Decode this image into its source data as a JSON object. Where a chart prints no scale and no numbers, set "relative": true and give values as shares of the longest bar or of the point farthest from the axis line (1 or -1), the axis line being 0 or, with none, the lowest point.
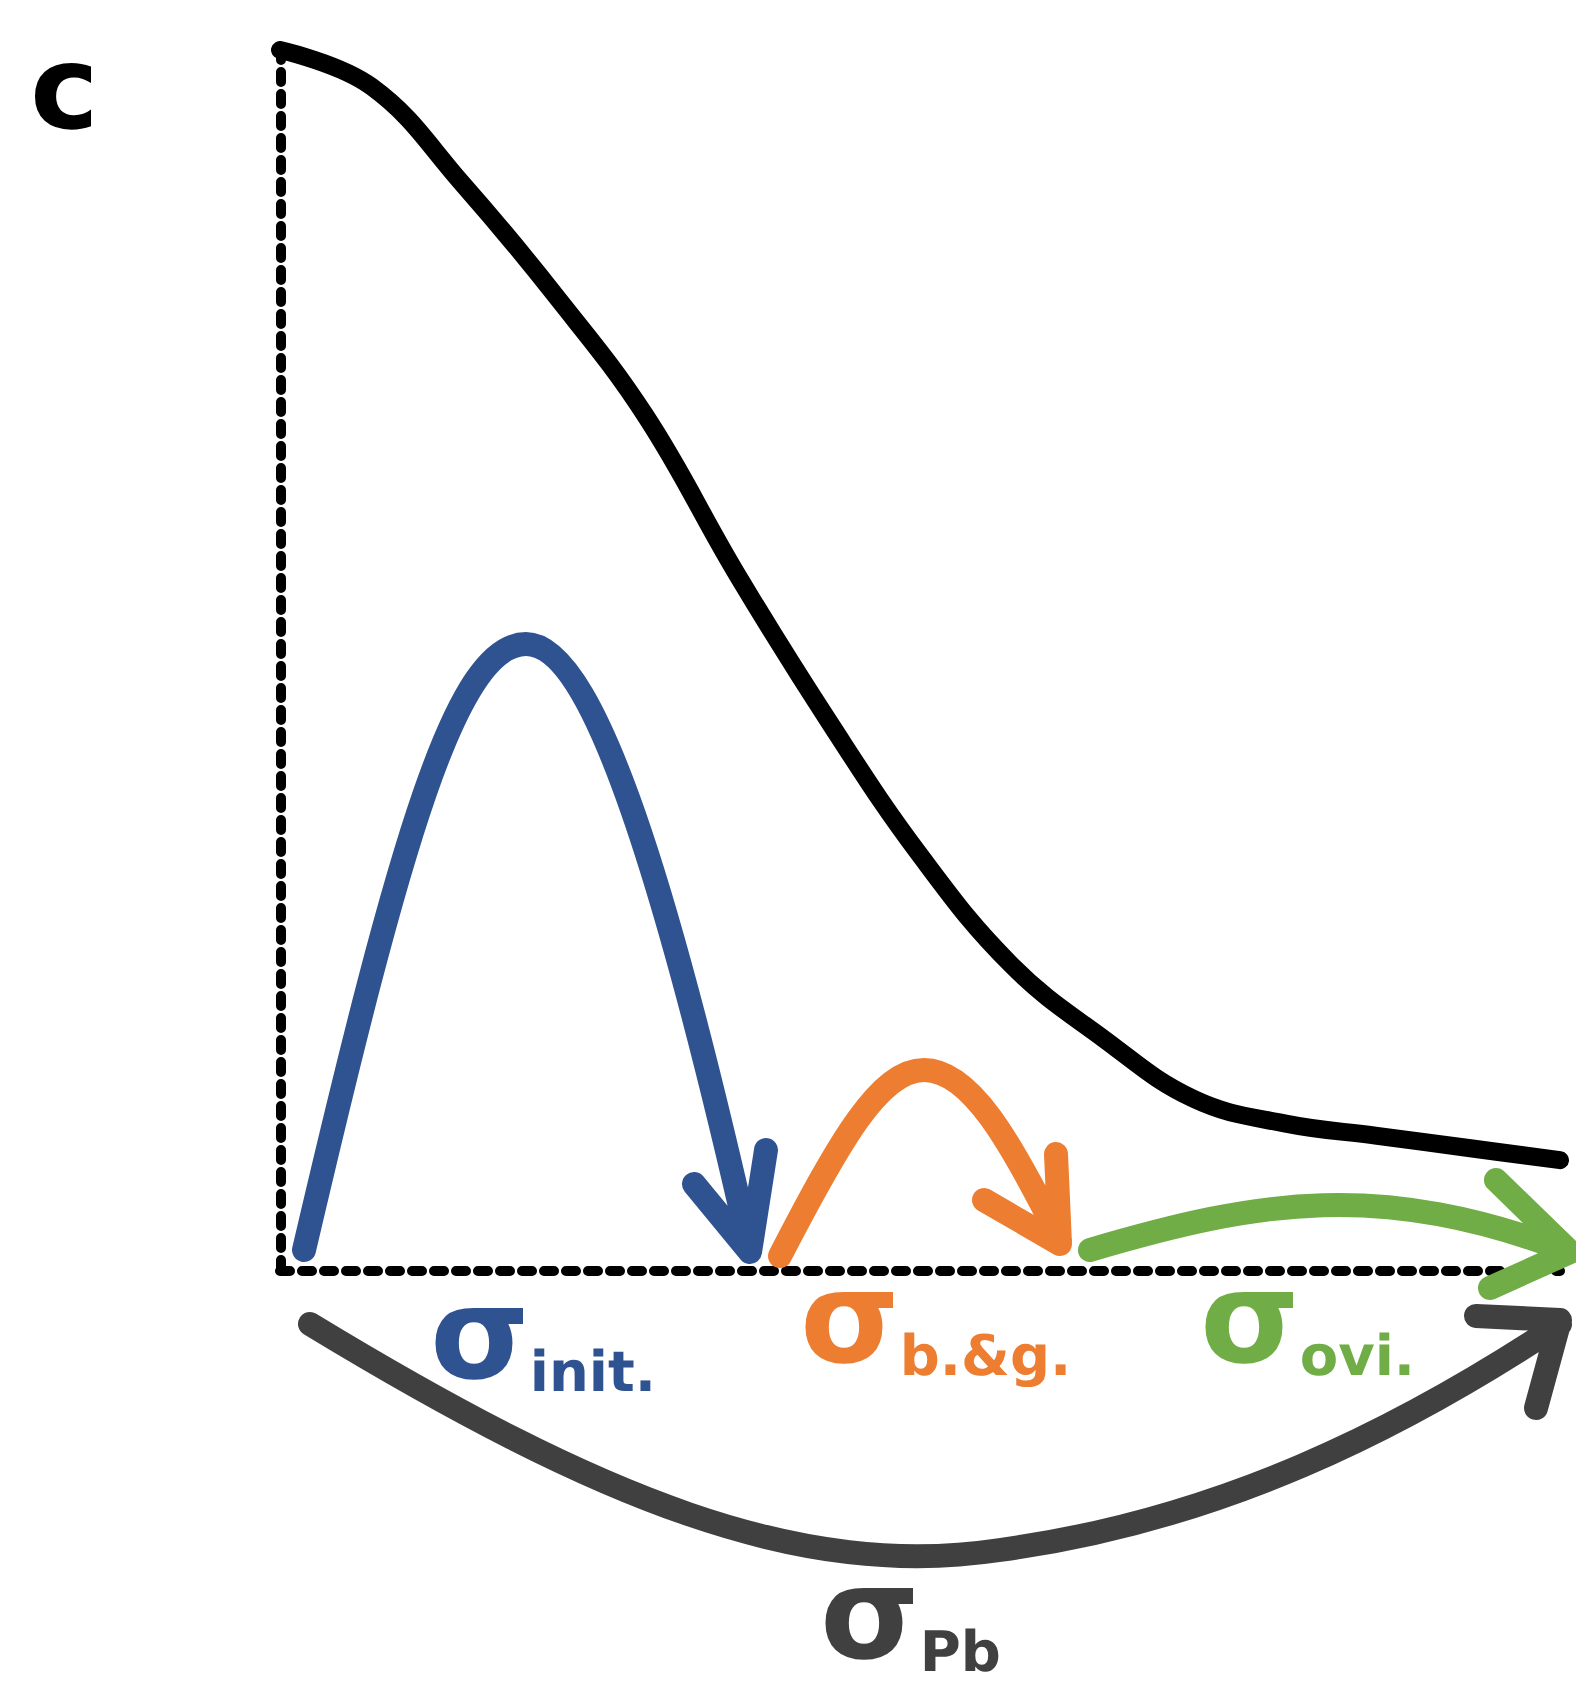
{
  "chart_data": {
    "type": "line",
    "title": "c",
    "relative": true,
    "categories": [
      null,
      null,
      null,
      null,
      null,
      null,
      null,
      null,
      null,
      null,
      null,
      null,
      null,
      null,
      null
    ],
    "series": [
      {
        "color": "#000000",
        "values": [
          1.0,
          0.97,
          0.89,
          0.8,
          0.7,
          0.57,
          0.45,
          0.34,
          0.25,
          0.19,
          0.14,
          0.12,
          0.11,
          0.1,
          0.09
        ]
      }
    ],
    "annotations": [
      "σ$_{init.}$",
      "σ$_{b.&g.}$",
      "σ$_{ovi.}$",
      "σ$_{Pb}$"
    ],
    "grid": false
  }
}
